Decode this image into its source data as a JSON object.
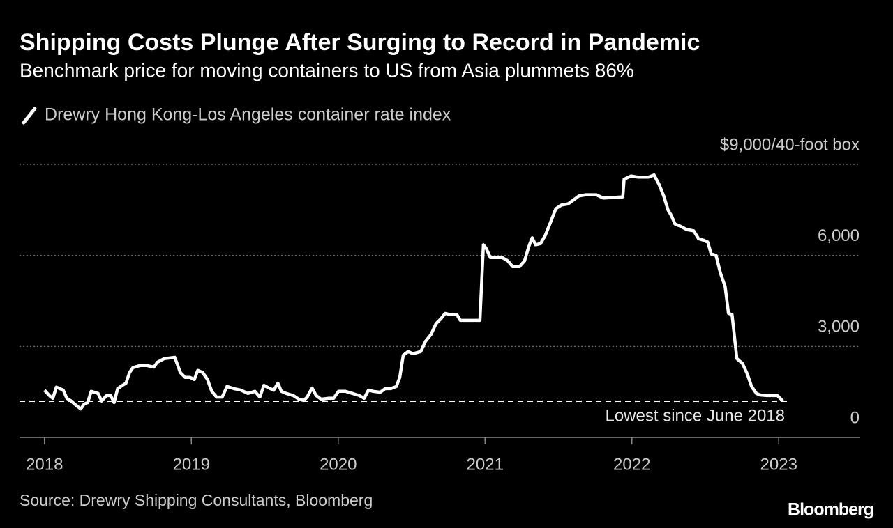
{
  "chart_data": {
    "type": "line",
    "title": "Shipping Costs Plunge After Surging to Record in Pandemic",
    "subtitle": "Benchmark price for moving containers to US from Asia plummets 86%",
    "source": "Source: Drewry Shipping Consultants, Bloomberg",
    "brand": "Bloomberg",
    "xlim": [
      2017.83,
      2023.55
    ],
    "xticks": [
      2018,
      2019,
      2020,
      2021,
      2022,
      2023
    ],
    "ylim": [
      0,
      9000
    ],
    "yticks": [
      0,
      {
        "value": 3000,
        "label": "3,000"
      },
      {
        "value": 6000,
        "label": "6,000"
      },
      {
        "value": 9000,
        "label": "$9,000/40-foot box"
      }
    ],
    "grid": true,
    "annotation": {
      "label": "Lowest since June 2018",
      "value": 1195
    },
    "series": [
      {
        "name": "Drewry Hong Kong-Los Angeles container rate index",
        "color": "#ffffff",
        "x": [
          2018.0,
          2018.033,
          2018.057,
          2018.081,
          2018.128,
          2018.152,
          2018.176,
          2018.223,
          2018.247,
          2018.27,
          2018.294,
          2018.318,
          2018.365,
          2018.389,
          2018.422,
          2018.451,
          2018.474,
          2018.498,
          2018.531,
          2018.555,
          2018.579,
          2018.602,
          2018.65,
          2018.697,
          2018.745,
          2018.769,
          2018.816,
          2018.887,
          2018.925,
          2018.958,
          2018.991,
          2019.02,
          2019.044,
          2019.077,
          2019.11,
          2019.139,
          2019.172,
          2019.21,
          2019.243,
          2019.29,
          2019.338,
          2019.385,
          2019.433,
          2019.466,
          2019.494,
          2019.528,
          2019.561,
          2019.589,
          2019.613,
          2019.646,
          2019.694,
          2019.732,
          2019.765,
          2019.789,
          2019.822,
          2019.85,
          2019.884,
          2019.931,
          2019.969,
          2020.002,
          2020.049,
          2020.097,
          2020.144,
          2020.177,
          2020.206,
          2020.239,
          2020.287,
          2020.32,
          2020.358,
          2020.396,
          2020.419,
          2020.443,
          2020.476,
          2020.509,
          2020.562,
          2020.595,
          2020.633,
          2020.666,
          2020.699,
          2020.728,
          2020.761,
          2020.808,
          2020.832,
          2020.88,
          2020.965,
          2020.989,
          2021.008,
          2021.036,
          2021.117,
          2021.155,
          2021.188,
          2021.235,
          2021.269,
          2021.297,
          2021.321,
          2021.344,
          2021.378,
          2021.411,
          2021.449,
          2021.482,
          2021.52,
          2021.567,
          2021.6,
          2021.639,
          2021.686,
          2021.757,
          2021.805,
          2021.876,
          2021.938,
          2021.947,
          2021.994,
          2022.042,
          2022.113,
          2022.151,
          2022.184,
          2022.217,
          2022.246,
          2022.269,
          2022.293,
          2022.326,
          2022.374,
          2022.421,
          2022.454,
          2022.483,
          2022.516,
          2022.54,
          2022.573,
          2022.602,
          2022.635,
          2022.658,
          2022.682,
          2022.715,
          2022.753,
          2022.786,
          2022.815,
          2022.848,
          2022.872,
          2022.919,
          2022.991,
          2023.028
        ],
        "values": [
          1560,
          1380,
          1290,
          1660,
          1560,
          1290,
          1220,
          1030,
          940,
          1100,
          1150,
          1520,
          1450,
          1200,
          1380,
          1380,
          1150,
          1610,
          1720,
          1790,
          2140,
          2300,
          2370,
          2370,
          2320,
          2480,
          2600,
          2640,
          2140,
          1980,
          1980,
          1910,
          2210,
          2140,
          1910,
          1520,
          1330,
          1330,
          1680,
          1610,
          1560,
          1450,
          1520,
          1330,
          1720,
          1630,
          1560,
          1790,
          1520,
          1450,
          1380,
          1260,
          1220,
          1330,
          1630,
          1380,
          1260,
          1290,
          1290,
          1520,
          1520,
          1450,
          1380,
          1290,
          1560,
          1520,
          1490,
          1610,
          1610,
          1680,
          1980,
          2710,
          2830,
          2760,
          2830,
          3170,
          3400,
          3750,
          3910,
          4090,
          4050,
          4050,
          3860,
          3860,
          3860,
          6350,
          6230,
          5930,
          5930,
          5820,
          5630,
          5630,
          5820,
          6280,
          6580,
          6350,
          6390,
          6670,
          7130,
          7540,
          7660,
          7700,
          7820,
          7960,
          8000,
          8000,
          7890,
          7910,
          7930,
          8510,
          8620,
          8580,
          8580,
          8650,
          8350,
          7960,
          7500,
          7310,
          7040,
          6970,
          6850,
          6810,
          6550,
          6510,
          6440,
          6050,
          6000,
          5430,
          4970,
          4090,
          4050,
          2600,
          2440,
          2090,
          1680,
          1450,
          1400,
          1380,
          1380,
          1200
        ]
      }
    ]
  }
}
